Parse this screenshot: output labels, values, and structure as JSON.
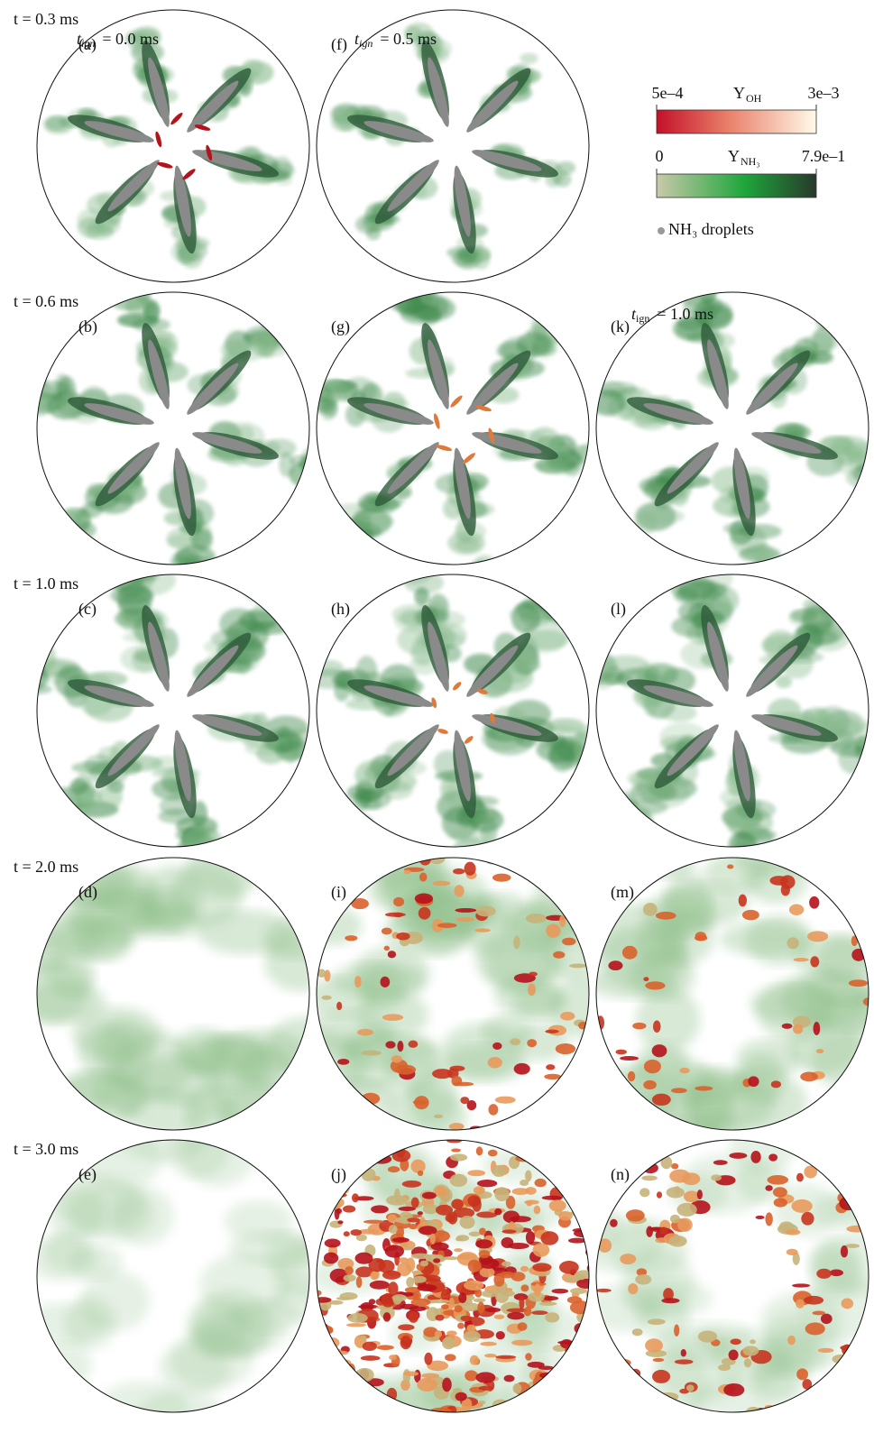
{
  "figure": {
    "rows": [
      {
        "time": "t = 0.3 ms",
        "panels": [
          "(a)",
          "(f)"
        ]
      },
      {
        "time": "t = 0.6 ms",
        "panels": [
          "(b)",
          "(g)",
          "(k)"
        ]
      },
      {
        "time": "t = 1.0 ms",
        "panels": [
          "(c)",
          "(h)",
          "(l)"
        ]
      },
      {
        "time": "t = 2.0 ms",
        "panels": [
          "(d)",
          "(i)",
          "(m)"
        ]
      },
      {
        "time": "t = 3.0 ms",
        "panels": [
          "(e)",
          "(j)",
          "(n)"
        ]
      }
    ],
    "ignition_labels": [
      {
        "symbol": "t",
        "subscript": "ign",
        "value": "= 0.0 ms"
      },
      {
        "symbol": "t",
        "subscript": "ign",
        "value": "= 0.5 ms"
      },
      {
        "symbol": "t",
        "subscript": "ign",
        "value": "= 1.0 ms"
      }
    ],
    "colorbars": [
      {
        "min": "5e–4",
        "symbol": "Y",
        "subscript": "OH",
        "max": "3e–3"
      },
      {
        "min": "0",
        "symbol": "Y",
        "subscript": "NH₃",
        "max": "7.9e–1"
      }
    ],
    "legend": "NH₃ droplets"
  }
}
